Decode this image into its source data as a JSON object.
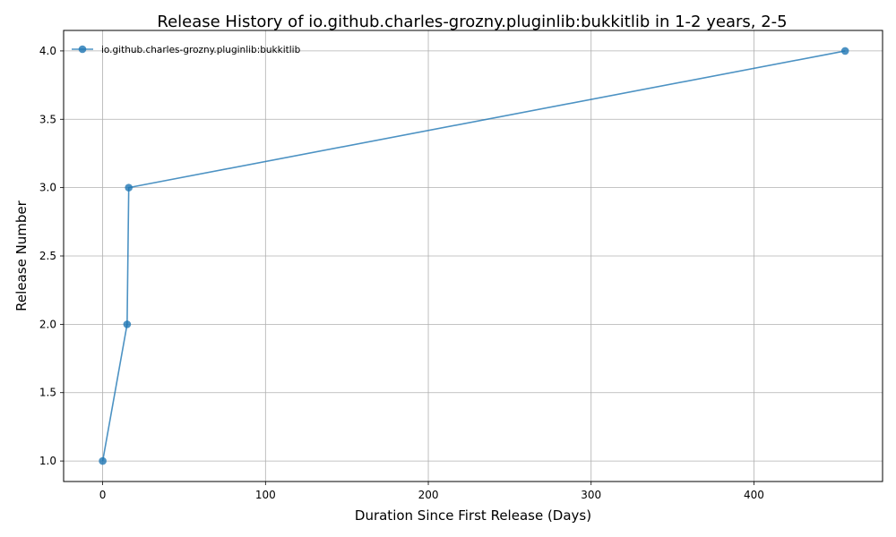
{
  "chart_data": {
    "type": "line",
    "title": "Release History of io.github.charles-grozny.pluginlib:bukkitlib in 1-2 years, 2-5",
    "xlabel": "Duration Since First Release (Days)",
    "ylabel": "Release Number",
    "xlim": [
      -24,
      479
    ],
    "ylim": [
      0.85,
      4.15
    ],
    "xticks": [
      0,
      100,
      200,
      300,
      400
    ],
    "xtick_labels": [
      "0",
      "100",
      "200",
      "300",
      "400"
    ],
    "yticks": [
      1.0,
      1.5,
      2.0,
      2.5,
      3.0,
      3.5,
      4.0
    ],
    "ytick_labels": [
      "1.0",
      "1.5",
      "2.0",
      "2.5",
      "3.0",
      "3.5",
      "4.0"
    ],
    "grid": true,
    "legend_position": "upper-left",
    "series": [
      {
        "name": "io.github.charles-grozny.pluginlib:bukkitlib",
        "color": "#1f77b4",
        "marker": "circle",
        "x": [
          0,
          15,
          16,
          456
        ],
        "y": [
          1,
          2,
          3,
          4
        ]
      }
    ]
  }
}
